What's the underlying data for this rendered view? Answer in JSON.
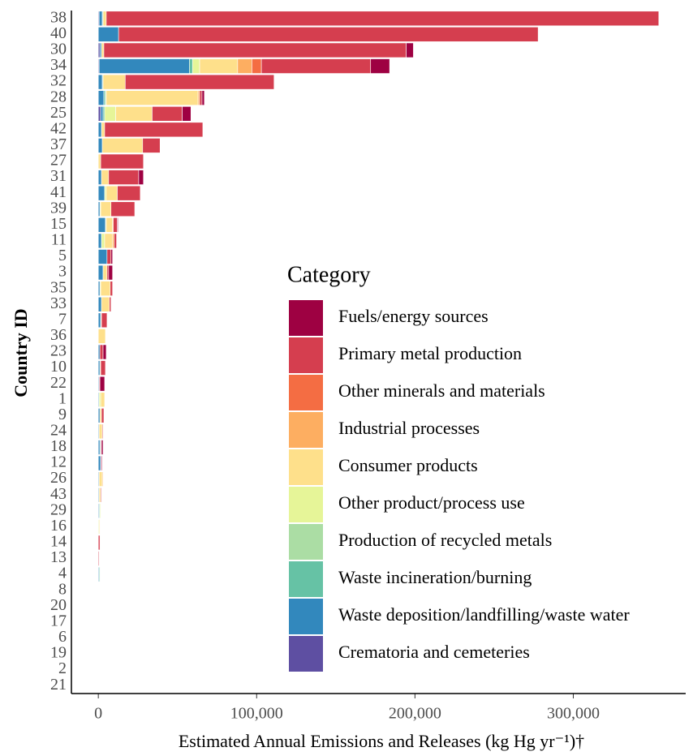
{
  "chart_data": {
    "type": "stacked-barh",
    "xlabel": "Estimated Annual Emissions and Releases (kg Hg  yr⁻¹)†",
    "ylabel": "Country ID",
    "legend_title": "Category",
    "legend": "bottom-right",
    "categories": [
      "38",
      "40",
      "30",
      "34",
      "32",
      "28",
      "25",
      "42",
      "37",
      "27",
      "31",
      "41",
      "39",
      "15",
      "11",
      "5",
      "3",
      "35",
      "33",
      "7",
      "36",
      "23",
      "10",
      "22",
      "1",
      "9",
      "24",
      "18",
      "12",
      "26",
      "43",
      "29",
      "16",
      "14",
      "13",
      "4",
      "8",
      "20",
      "17",
      "6",
      "19",
      "2",
      "21"
    ],
    "xlim": [
      -17000,
      371000
    ],
    "xticks": [
      0,
      {
        "value": 100000,
        "label": "100,000"
      },
      {
        "value": 200000,
        "label": "200,000"
      },
      {
        "value": 300000,
        "label": "300,000"
      }
    ],
    "series": [
      {
        "name": "Fuels/energy sources",
        "color": "#9e0142",
        "values": [
          0,
          0,
          4500,
          12000,
          0,
          1500,
          5500,
          0,
          0,
          0,
          3000,
          0,
          0,
          500,
          0,
          1000,
          2500,
          0,
          0,
          0,
          0,
          2000,
          0,
          3000,
          0,
          0,
          0,
          1000,
          500,
          0,
          0,
          0,
          0,
          0,
          0,
          0,
          0,
          0,
          0,
          0,
          0,
          0,
          0
        ]
      },
      {
        "name": "Primary metal production",
        "color": "#d53e4f",
        "values": [
          349000,
          265000,
          191000,
          69000,
          94000,
          1500,
          19000,
          62000,
          11000,
          27000,
          19000,
          14500,
          15000,
          2500,
          1500,
          2500,
          1000,
          1500,
          1000,
          3500,
          0,
          2000,
          3000,
          500,
          0,
          1500,
          500,
          500,
          500,
          0,
          500,
          0,
          0,
          1000,
          500,
          0,
          0,
          0,
          0,
          0,
          0,
          0,
          0
        ]
      },
      {
        "name": "Other minerals and materials",
        "color": "#f46d43",
        "values": [
          0,
          0,
          0,
          6000,
          0,
          0,
          0,
          0,
          0,
          0,
          0,
          0,
          0,
          0,
          0,
          0,
          0,
          0,
          0,
          0,
          0,
          0,
          0,
          0,
          0,
          0,
          0,
          0,
          0,
          0,
          0,
          0,
          0,
          0,
          0,
          0,
          0,
          0,
          0,
          0,
          0,
          0,
          0
        ]
      },
      {
        "name": "Industrial processes",
        "color": "#fdae61",
        "values": [
          0,
          0,
          0,
          9000,
          0,
          1000,
          0,
          0,
          0,
          0,
          0,
          0,
          0,
          500,
          1000,
          0,
          0,
          0,
          0,
          0,
          0,
          0,
          0,
          0,
          0,
          0,
          0,
          0,
          0,
          500,
          0,
          0,
          0,
          0,
          0,
          0,
          0,
          0,
          0,
          0,
          0,
          0,
          0
        ]
      },
      {
        "name": "Consumer products",
        "color": "#fee08b",
        "values": [
          2000,
          0,
          1500,
          24000,
          14000,
          58000,
          23000,
          2000,
          25500,
          1500,
          4500,
          7000,
          6500,
          4000,
          5000,
          0,
          2500,
          6000,
          5000,
          500,
          4500,
          0,
          500,
          0,
          2500,
          1000,
          2000,
          0,
          0,
          2000,
          1000,
          0,
          500,
          0,
          0,
          0,
          0,
          0,
          0,
          0,
          0,
          0,
          0
        ]
      },
      {
        "name": "Other product/process use",
        "color": "#e6f598",
        "values": [
          0,
          0,
          0,
          4500,
          0,
          500,
          7000,
          0,
          0,
          0,
          0,
          1000,
          500,
          500,
          2000,
          0,
          0,
          500,
          0,
          0,
          0,
          0,
          0,
          0,
          1000,
          0,
          0,
          0,
          0,
          0,
          0,
          500,
          500,
          0,
          0,
          0,
          0,
          0,
          0,
          0,
          0,
          0,
          0
        ]
      },
      {
        "name": "Production of recycled metals",
        "color": "#abdda4",
        "values": [
          0,
          0,
          0,
          0,
          0,
          0,
          0,
          0,
          0,
          0,
          0,
          0,
          0,
          0,
          0,
          0,
          0,
          0,
          0,
          0,
          0,
          0,
          0,
          0,
          0,
          0,
          0,
          0,
          0,
          0,
          0,
          0,
          0,
          0,
          0,
          0,
          0,
          0,
          0,
          0,
          0,
          0,
          0
        ]
      },
      {
        "name": "Waste incineration/burning",
        "color": "#66c2a5",
        "values": [
          500,
          0,
          0,
          2000,
          500,
          1000,
          1000,
          0,
          0,
          0,
          0,
          0,
          0,
          0,
          0,
          0,
          0,
          0,
          0,
          0,
          0,
          0,
          0,
          0,
          0,
          0,
          0,
          500,
          0,
          0,
          0,
          500,
          0,
          0,
          0,
          500,
          0,
          0,
          0,
          0,
          0,
          0,
          0
        ]
      },
      {
        "name": "Waste deposition/landfilling/waste water",
        "color": "#3288bd",
        "values": [
          2000,
          12800,
          1000,
          57000,
          2500,
          3500,
          1500,
          2000,
          2500,
          0,
          2000,
          4000,
          1000,
          4500,
          2000,
          5500,
          3000,
          1000,
          2000,
          1500,
          0,
          1000,
          1000,
          500,
          500,
          1000,
          500,
          1000,
          1500,
          500,
          500,
          500,
          0,
          0,
          0,
          500,
          0,
          0,
          0,
          0,
          0,
          0,
          0
        ]
      },
      {
        "name": "Crematoria and cemeteries",
        "color": "#5e4fa2",
        "values": [
          500,
          0,
          1000,
          500,
          0,
          0,
          1500,
          0,
          0,
          0,
          0,
          0,
          0,
          0,
          0,
          0,
          0,
          0,
          0,
          0,
          0,
          0,
          0,
          0,
          0,
          0,
          0,
          0,
          0,
          0,
          0,
          0,
          0,
          0,
          0,
          0,
          0,
          0,
          0,
          0,
          0,
          0,
          0
        ]
      }
    ]
  }
}
